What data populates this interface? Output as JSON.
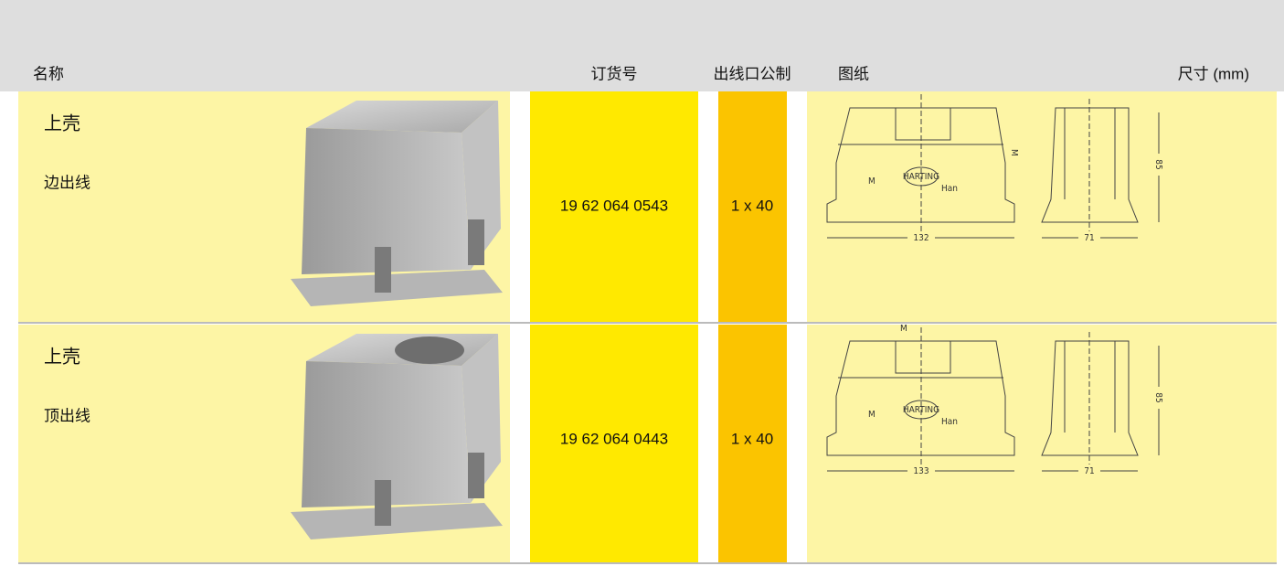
{
  "table": {
    "headers": [
      "名称",
      "订货号",
      "出线口公制",
      "图纸",
      "尺寸 (mm)"
    ],
    "rows": [
      {
        "name": "上壳",
        "variant": "边出线",
        "order_no": "19 62 064 0543",
        "outlet": "1 x 40",
        "drawing": {
          "side_label": "M",
          "logo": "HARTING",
          "brand": "Han",
          "thread_label": "M",
          "width_front": "132",
          "width_side": "71",
          "height": "85"
        }
      },
      {
        "name": "上壳",
        "variant": "顶出线",
        "order_no": "19 62 064 0443",
        "outlet": "1 x 40",
        "drawing": {
          "side_label": "M",
          "logo": "HARTING",
          "brand": "Han",
          "thread_label": "M",
          "width_front": "133",
          "width_side": "71",
          "height": "85"
        }
      }
    ]
  }
}
